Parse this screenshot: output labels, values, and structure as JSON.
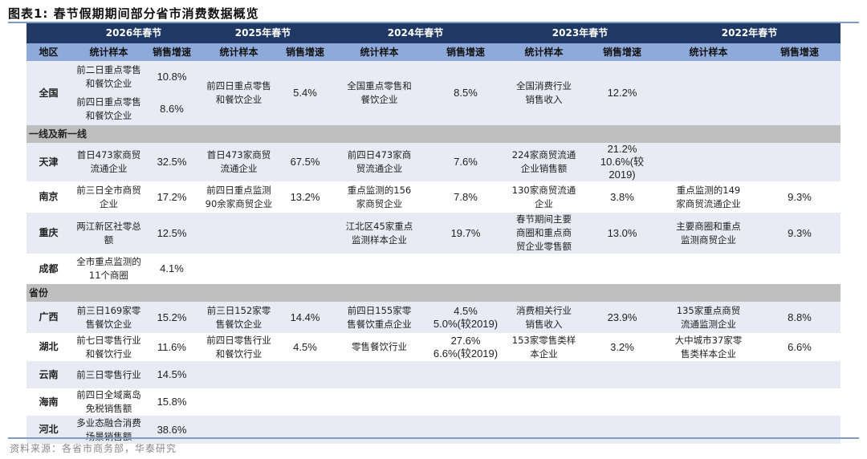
{
  "title": "图表1:  春节假期期间部分省市消费数据概览",
  "source": "资料来源：各省市商务部，华泰研究",
  "colors": {
    "header_dark": "#203864",
    "header_light": "#8eaadb",
    "row_alt": "#e8ebf4",
    "section": "#bfbfbf"
  },
  "header": {
    "years": [
      "2026年春节",
      "2025年春节",
      "2024年春节",
      "2023年春节",
      "2022年春节"
    ],
    "region": "地区",
    "sample": "统计样本",
    "growth": "销售增速"
  },
  "national": {
    "region": "全国",
    "y2026": [
      {
        "sample": "前二日重点零售\n和餐饮企业",
        "growth": "10.8%"
      },
      {
        "sample": "前四日重点零售\n和餐饮企业",
        "growth": "8.6%"
      }
    ],
    "others": [
      {
        "sample": "前四日重点零售\n和餐饮企业",
        "growth": "5.4%"
      },
      {
        "sample": "全国重点零售和\n餐饮企业",
        "growth": "8.5%"
      },
      {
        "sample": "全国消费行业\n销售收入",
        "growth": "12.2%"
      },
      {
        "sample": "",
        "growth": ""
      }
    ]
  },
  "sections": [
    {
      "label": "一线及新一线",
      "rows": [
        {
          "region": "天津",
          "cells": [
            {
              "sample": "首日473家商贸\n流通企业",
              "growth": "32.5%"
            },
            {
              "sample": "首日473家商贸\n流通企业",
              "growth": "67.5%"
            },
            {
              "sample": "前四日473家商\n贸流通企业",
              "growth": "7.6%"
            },
            {
              "sample": "224家商贸流通\n企业销售额",
              "growth": "21.2%\n10.6%(较2019)"
            },
            {
              "sample": "",
              "growth": ""
            }
          ]
        },
        {
          "region": "南京",
          "cells": [
            {
              "sample": "前三日全市商贸\n企业",
              "growth": "17.2%"
            },
            {
              "sample": "前四日重点监测\n90余家商贸企业",
              "growth": "13.2%"
            },
            {
              "sample": "重点监测的156\n家商贸企业",
              "growth": "7.8%"
            },
            {
              "sample": "130家商贸流通\n企业",
              "growth": "3.8%"
            },
            {
              "sample": "重点监测的149\n家商贸流通企业",
              "growth": "9.3%"
            }
          ]
        },
        {
          "region": "重庆",
          "cells": [
            {
              "sample": "两江新区社零总\n额",
              "growth": "12.5%"
            },
            {
              "sample": "",
              "growth": ""
            },
            {
              "sample": "江北区45家重点\n监测样本企业",
              "growth": "19.7%"
            },
            {
              "sample": "春节期间主要\n商圈和重点商\n贸企业零售额",
              "growth": "13.0%"
            },
            {
              "sample": "主要商圈和重点\n监测商贸企业",
              "growth": "9.3%"
            }
          ]
        },
        {
          "region": "成都",
          "cells": [
            {
              "sample": "全市重点监测的\n11个商圈",
              "growth": "4.1%"
            },
            {
              "sample": "",
              "growth": ""
            },
            {
              "sample": "",
              "growth": ""
            },
            {
              "sample": "",
              "growth": ""
            },
            {
              "sample": "",
              "growth": ""
            }
          ]
        }
      ]
    },
    {
      "label": "省份",
      "rows": [
        {
          "region": "广西",
          "cells": [
            {
              "sample": "前三日169家零\n售餐饮企业",
              "growth": "15.2%"
            },
            {
              "sample": "前三日152家零\n售餐饮企业",
              "growth": "14.4%"
            },
            {
              "sample": "前四日155家零\n售餐饮重点企业",
              "growth": "4.5%\n5.0%(较2019)"
            },
            {
              "sample": "消费相关行业\n销售收入",
              "growth": "23.9%"
            },
            {
              "sample": "135家重点商贸\n流通监测企业",
              "growth": "8.8%"
            }
          ]
        },
        {
          "region": "湖北",
          "cells": [
            {
              "sample": "前七日零售行业\n和餐饮行业",
              "growth": "11.6%"
            },
            {
              "sample": "前四日零售行业\n和餐饮行业",
              "growth": "4.5%"
            },
            {
              "sample": "零售餐饮行业",
              "growth": "27.6%\n6.6%(较2019)"
            },
            {
              "sample": "153家零售类样\n本企业",
              "growth": "3.2%"
            },
            {
              "sample": "大中城市37家零\n售类样本企业",
              "growth": "6.6%"
            }
          ]
        },
        {
          "region": "云南",
          "cells": [
            {
              "sample": "前三日零售行业",
              "growth": "14.5%"
            },
            {
              "sample": "",
              "growth": ""
            },
            {
              "sample": "",
              "growth": ""
            },
            {
              "sample": "",
              "growth": ""
            },
            {
              "sample": "",
              "growth": ""
            }
          ]
        },
        {
          "region": "海南",
          "cells": [
            {
              "sample": "前四日全域离岛\n免税销售额",
              "growth": "15.8%"
            },
            {
              "sample": "",
              "growth": ""
            },
            {
              "sample": "",
              "growth": ""
            },
            {
              "sample": "",
              "growth": ""
            },
            {
              "sample": "",
              "growth": ""
            }
          ]
        },
        {
          "region": "河北",
          "cells": [
            {
              "sample": "多业态融合消费\n场景销售额",
              "growth": "38.6%"
            },
            {
              "sample": "",
              "growth": ""
            },
            {
              "sample": "",
              "growth": ""
            },
            {
              "sample": "",
              "growth": ""
            },
            {
              "sample": "",
              "growth": ""
            }
          ]
        }
      ]
    }
  ]
}
